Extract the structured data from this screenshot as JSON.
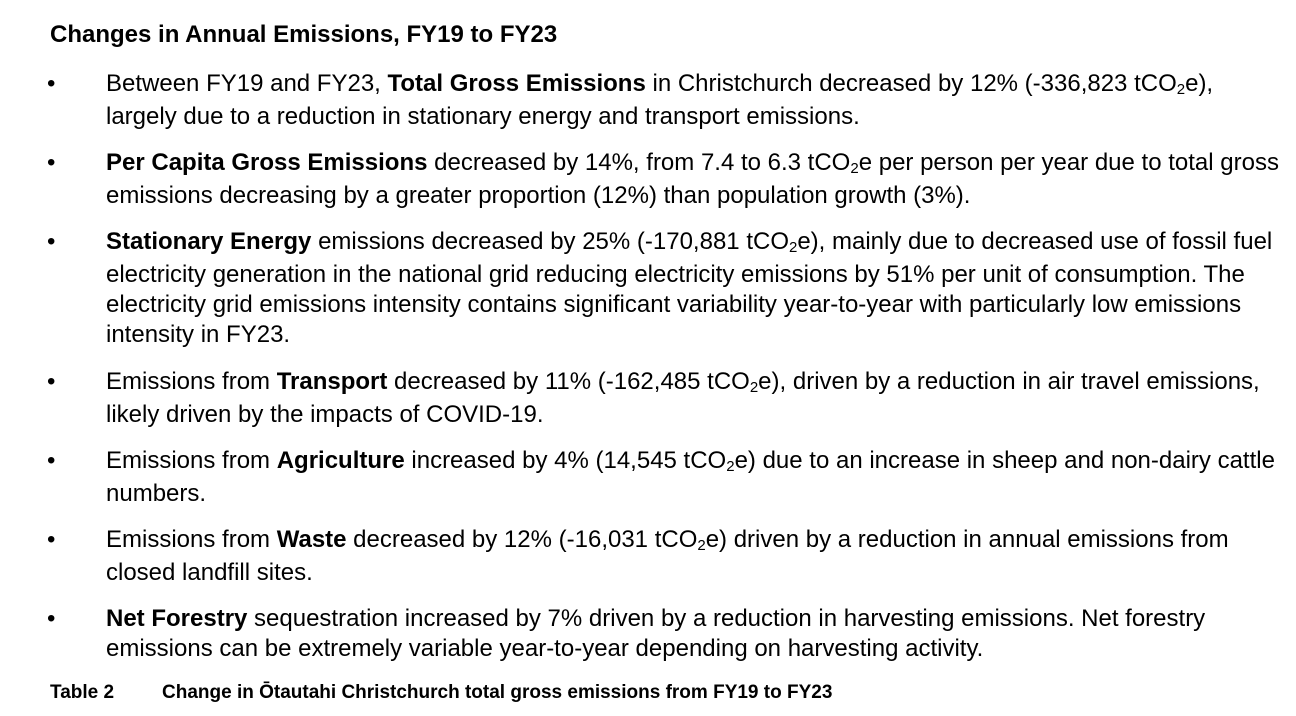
{
  "heading": "Changes in Annual Emissions, FY19 to FY23",
  "bullet_symbol": "•",
  "bullets": [
    {
      "parts": [
        {
          "t": "Between FY19 and FY23, "
        },
        {
          "t": "Total Gross Emissions",
          "b": true
        },
        {
          "t": " in Christchurch decreased by 12% (-336,823 tCO"
        },
        {
          "t": "2",
          "sub": true
        },
        {
          "t": "e), largely due to a reduction in stationary energy and transport emissions."
        }
      ]
    },
    {
      "parts": [
        {
          "t": "Per Capita Gross Emissions",
          "b": true
        },
        {
          "t": " decreased by 14%, from 7.4 to 6.3 tCO"
        },
        {
          "t": "2",
          "sub": true
        },
        {
          "t": "e per person per year due to total gross emissions decreasing by a greater proportion (12%) than population growth (3%)."
        }
      ]
    },
    {
      "parts": [
        {
          "t": "Stationary Energy",
          "b": true
        },
        {
          "t": " emissions decreased by 25% (-170,881 tCO"
        },
        {
          "t": "2",
          "sub": true
        },
        {
          "t": "e), mainly due to decreased use of fossil fuel electricity generation in the national grid reducing electricity emissions by 51% per unit of consumption. The electricity grid emissions intensity contains significant variability year-to-year with particularly low emissions intensity in FY23."
        }
      ]
    },
    {
      "parts": [
        {
          "t": "Emissions from "
        },
        {
          "t": "Transport",
          "b": true
        },
        {
          "t": " decreased by 11% (-162,485 tCO"
        },
        {
          "t": "2",
          "sub": true
        },
        {
          "t": "e), driven by a reduction in air travel emissions, likely driven by the impacts of COVID-19."
        }
      ]
    },
    {
      "parts": [
        {
          "t": "Emissions from "
        },
        {
          "t": "Agriculture",
          "b": true
        },
        {
          "t": " increased by 4% (14,545 tCO"
        },
        {
          "t": "2",
          "sub": true
        },
        {
          "t": "e) due to an increase in sheep and non-dairy cattle numbers."
        }
      ]
    },
    {
      "parts": [
        {
          "t": "Emissions from "
        },
        {
          "t": "Waste",
          "b": true
        },
        {
          "t": " decreased by 12% (-16,031 tCO"
        },
        {
          "t": "2",
          "sub": true
        },
        {
          "t": "e) driven by a reduction in annual emissions from closed landfill sites."
        }
      ]
    },
    {
      "parts": [
        {
          "t": "Net Forestry",
          "b": true
        },
        {
          "t": " sequestration increased by 7% driven by a reduction in harvesting emissions. Net forestry emissions can be extremely variable year-to-year depending on harvesting activity."
        }
      ]
    }
  ],
  "caption": {
    "label": "Table 2",
    "text": "Change in Ōtautahi Christchurch total gross emissions from FY19 to FY23"
  }
}
